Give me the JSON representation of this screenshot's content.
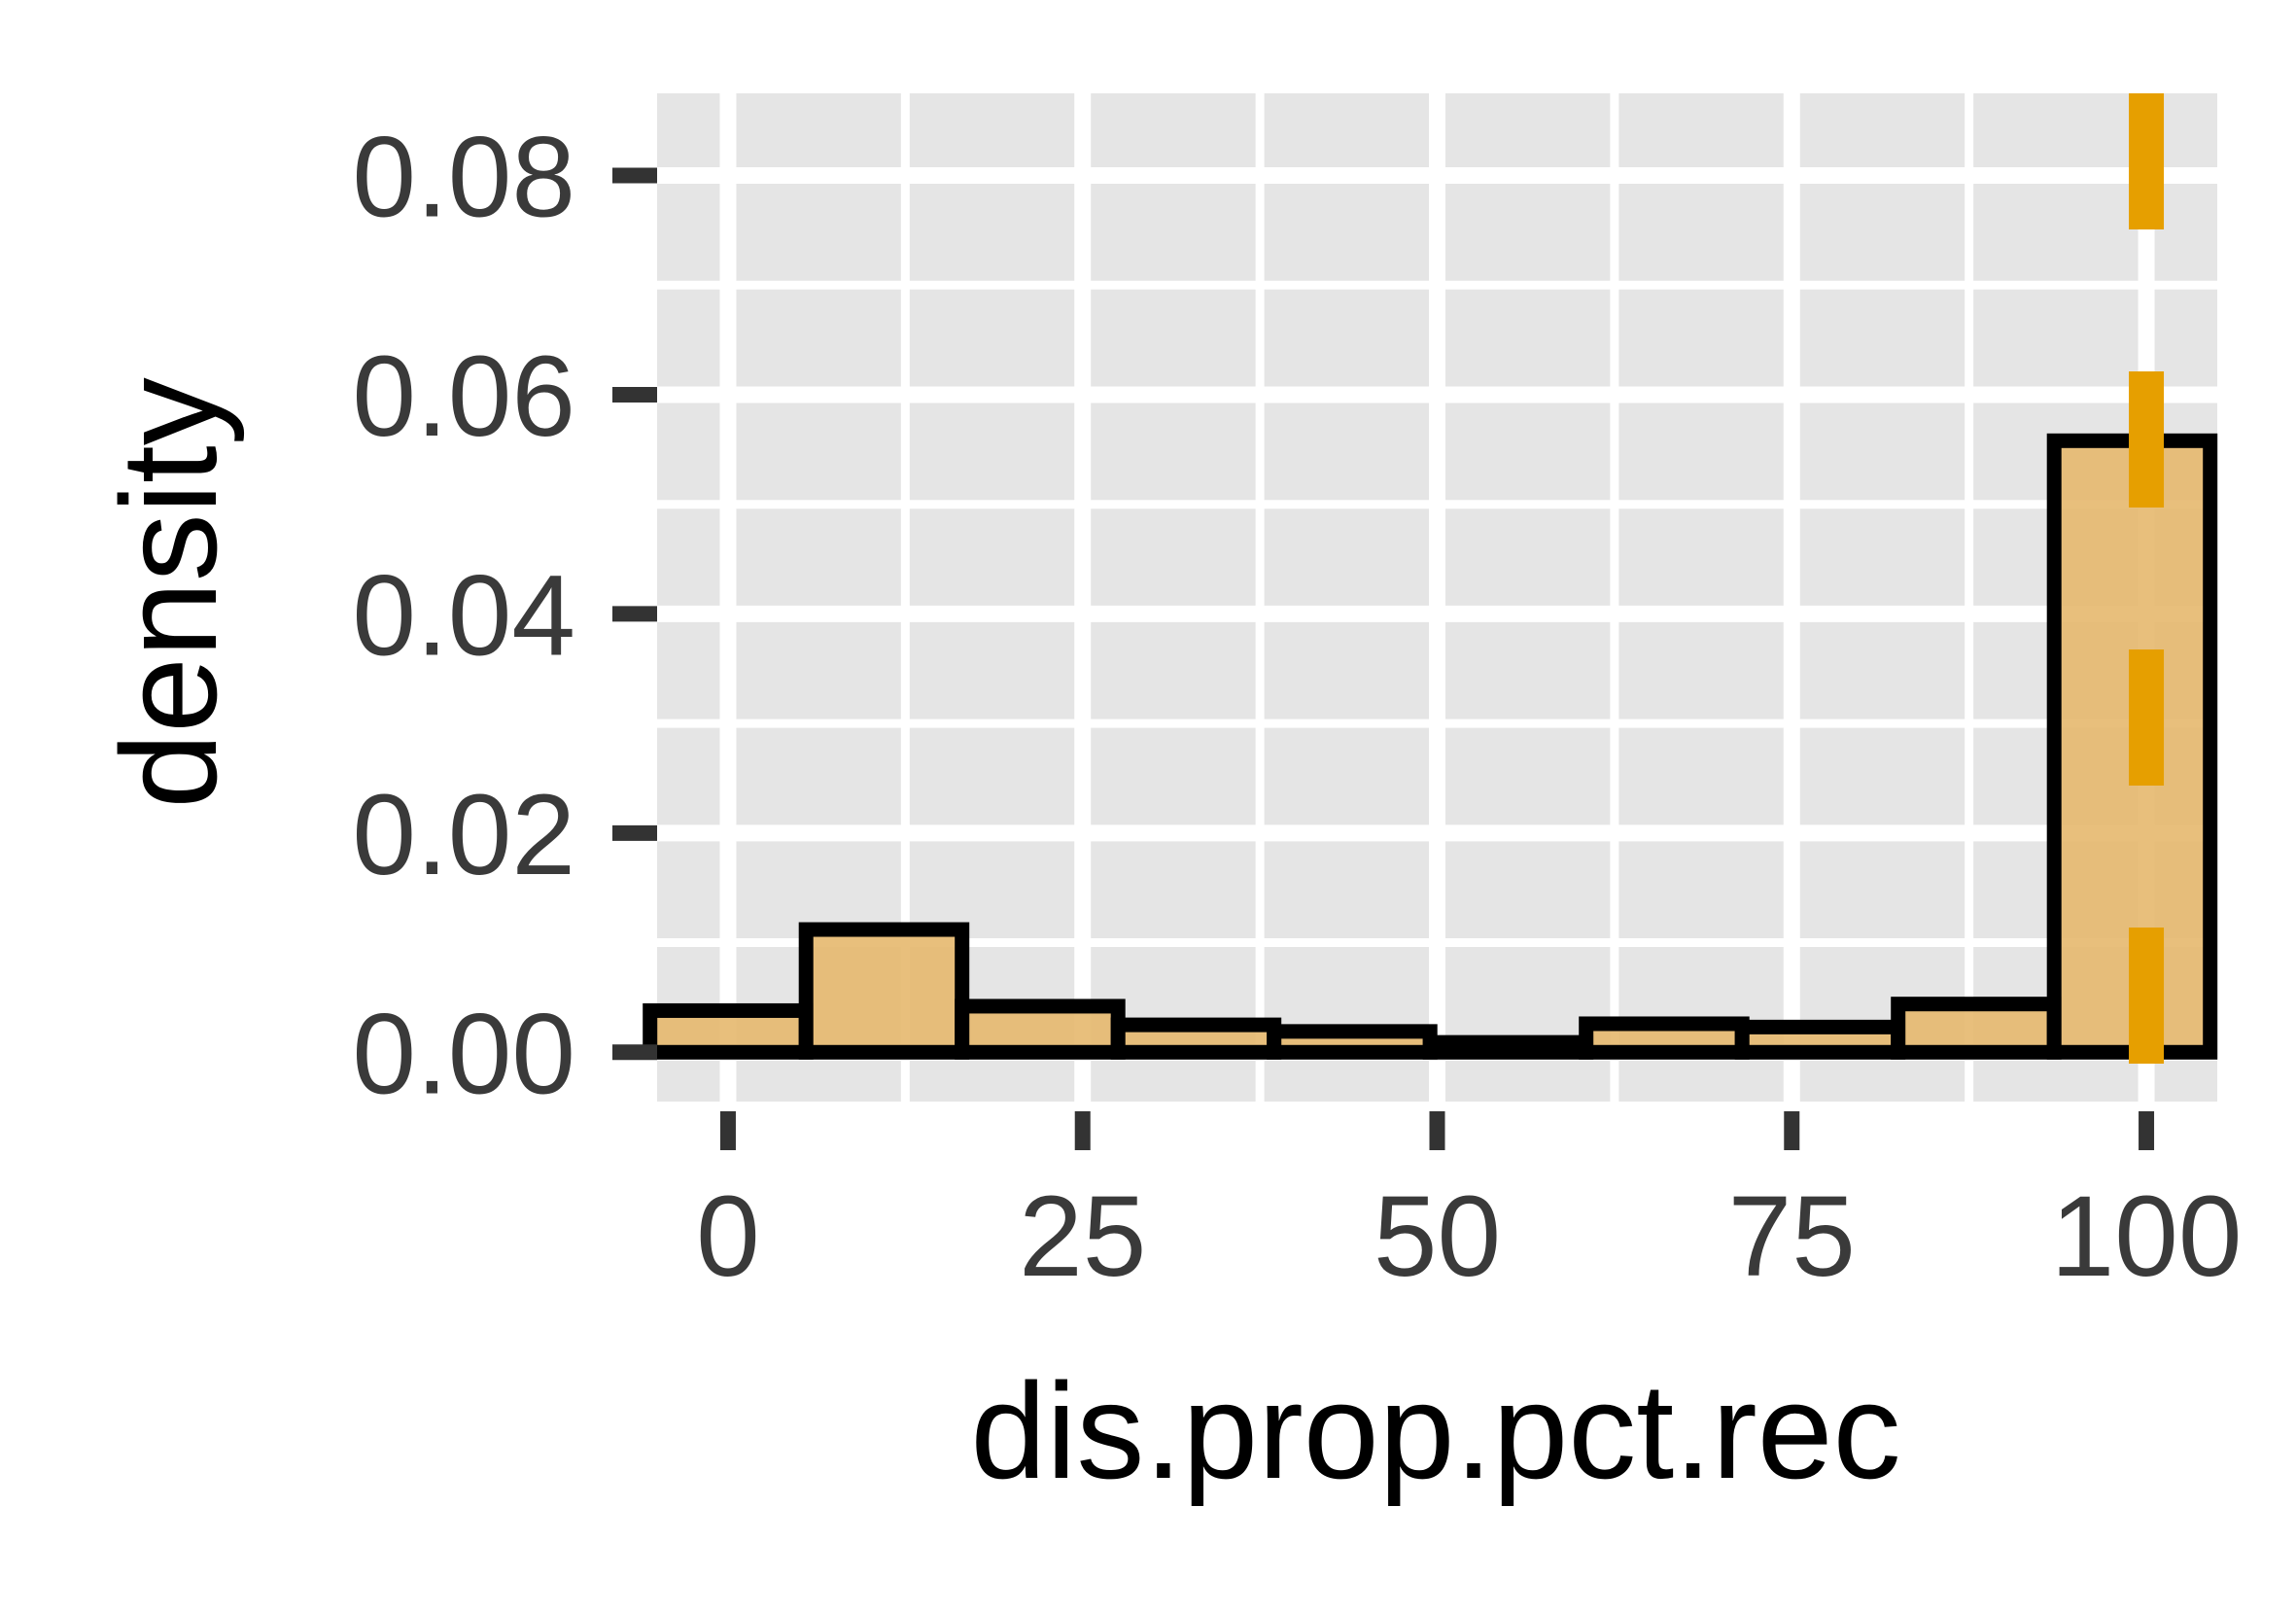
{
  "chart_data": {
    "type": "histogram",
    "xlabel": "dis.prop.pct.rec",
    "ylabel": "density",
    "xlim": [
      -5,
      105
    ],
    "ylim": [
      -0.0045,
      0.0875
    ],
    "x_ticks": [
      0,
      25,
      50,
      75,
      100
    ],
    "x_tick_labels": [
      "0",
      "25",
      "50",
      "75",
      "100"
    ],
    "y_ticks": [
      0,
      0.02,
      0.04,
      0.06,
      0.08
    ],
    "y_tick_labels": [
      "0.00",
      "0.02",
      "0.04",
      "0.06",
      "0.08"
    ],
    "bin_width": 11,
    "bins": [
      {
        "x_start": -5.5,
        "x_end": 5.5,
        "density": 0.0038
      },
      {
        "x_start": 5.5,
        "x_end": 16.5,
        "density": 0.0112
      },
      {
        "x_start": 16.5,
        "x_end": 27.5,
        "density": 0.0042
      },
      {
        "x_start": 27.5,
        "x_end": 38.5,
        "density": 0.0025
      },
      {
        "x_start": 38.5,
        "x_end": 49.5,
        "density": 0.0019
      },
      {
        "x_start": 49.5,
        "x_end": 60.5,
        "density": 0.0009
      },
      {
        "x_start": 60.5,
        "x_end": 71.5,
        "density": 0.0026
      },
      {
        "x_start": 71.5,
        "x_end": 82.5,
        "density": 0.0023
      },
      {
        "x_start": 82.5,
        "x_end": 93.5,
        "density": 0.0044
      },
      {
        "x_start": 93.5,
        "x_end": 104.5,
        "density": 0.0558
      }
    ],
    "vline": {
      "x": 100,
      "style": "dashed",
      "color": "#E69F00"
    },
    "grid": true,
    "colors": {
      "panel_background": "#E5E5E5",
      "grid": "#FFFFFF",
      "bar_fill": "#E6B86E",
      "bar_stroke": "#000000",
      "vline": "#E69F00",
      "tick_mark": "#333333",
      "tick_label": "#3a3a3a",
      "axis_title": "#000000"
    }
  }
}
